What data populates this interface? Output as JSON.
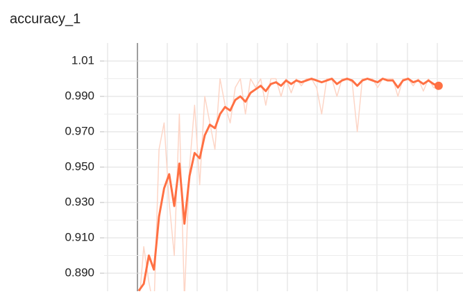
{
  "chart_data": {
    "type": "line",
    "title": "accuracy_1",
    "x": [
      0,
      1,
      2,
      3,
      4,
      5,
      6,
      7,
      8,
      9,
      10,
      11,
      12,
      13,
      14,
      15,
      16,
      17,
      18,
      19,
      20,
      21,
      22,
      23,
      24,
      25,
      26,
      27,
      28,
      29,
      30,
      31,
      32,
      33,
      34,
      35,
      36,
      37,
      38,
      39,
      40,
      41,
      42,
      43,
      44,
      45,
      46,
      47,
      48,
      49,
      50,
      51,
      52,
      53,
      54,
      55,
      56,
      57,
      58,
      59
    ],
    "series": [
      {
        "color": "#fdd5c6",
        "values": [
          0.87,
          0.905,
          0.885,
          0.87,
          0.96,
          0.975,
          0.93,
          0.9,
          0.98,
          0.875,
          0.95,
          0.985,
          0.94,
          0.99,
          0.975,
          0.96,
          1.0,
          0.985,
          0.975,
          0.995,
          1.0,
          0.98,
          1.0,
          0.995,
          1.0,
          0.985,
          1.0,
          1.0,
          0.99,
          1.0,
          0.992,
          1.0,
          0.996,
          1.0,
          1.0,
          0.995,
          0.98,
          1.0,
          1.0,
          0.99,
          1.0,
          1.0,
          0.998,
          0.97,
          1.0,
          1.0,
          1.0,
          0.995,
          1.0,
          1.0,
          1.0,
          0.99,
          1.0,
          1.0,
          0.996,
          1.0,
          0.993,
          1.0,
          0.995,
          0.994
        ]
      },
      {
        "color": "#ff7043",
        "values": [
          0.88,
          0.884,
          0.9,
          0.892,
          0.922,
          0.938,
          0.946,
          0.928,
          0.952,
          0.918,
          0.945,
          0.958,
          0.955,
          0.968,
          0.974,
          0.972,
          0.98,
          0.984,
          0.982,
          0.988,
          0.99,
          0.987,
          0.992,
          0.994,
          0.996,
          0.993,
          0.997,
          0.998,
          0.996,
          0.999,
          0.997,
          0.999,
          0.998,
          0.999,
          1.0,
          0.999,
          0.998,
          0.999,
          1.0,
          0.997,
          0.999,
          1.0,
          0.999,
          0.996,
          0.999,
          1.0,
          0.999,
          0.998,
          1.0,
          0.999,
          0.999,
          0.995,
          0.999,
          1.0,
          0.998,
          0.999,
          0.997,
          0.999,
          0.997,
          0.996
        ]
      }
    ],
    "xlim": [
      -6.8,
      63.8
    ],
    "ylim": [
      0.8798,
      1.0202
    ],
    "yticks": [
      {
        "value": 0.89,
        "label": "0.890"
      },
      {
        "value": 0.91,
        "label": "0.910"
      },
      {
        "value": 0.93,
        "label": "0.930"
      },
      {
        "value": 0.95,
        "label": "0.950"
      },
      {
        "value": 0.97,
        "label": "0.970"
      },
      {
        "value": 0.99,
        "label": "0.990"
      },
      1.01
    ],
    "grid": true
  }
}
